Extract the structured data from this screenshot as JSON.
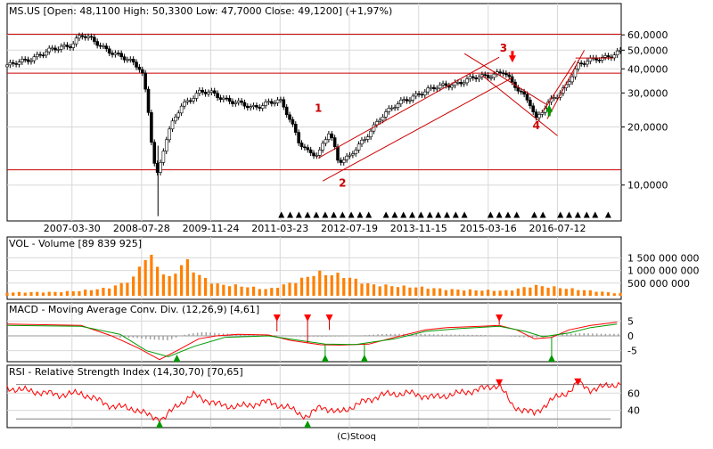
{
  "chart_data": [
    {
      "type": "candlestick",
      "title": "MS.US [Open: 48,1100 High: 50,3300 Low: 47,7000 Close: 49,1200] (+1,97%)",
      "scale": "log",
      "ylim": [
        6.8,
        72
      ],
      "yticks": [
        {
          "value": 10,
          "label": "10,0000"
        },
        {
          "value": 20,
          "label": "20,0000"
        },
        {
          "value": 30,
          "label": "30,0000"
        },
        {
          "value": 40,
          "label": "40,0000"
        },
        {
          "value": 50,
          "label": "50,0000"
        },
        {
          "value": 60,
          "label": "60,0000"
        }
      ],
      "xlim": [
        "2006-01-01",
        "2017-09-30"
      ],
      "xticks": [
        "2007-03-30",
        "2008-07-28",
        "2009-11-24",
        "2011-03-23",
        "2012-07-19",
        "2013-11-15",
        "2015-03-16",
        "2016-07-12"
      ],
      "grid": true,
      "price_path": [
        [
          "2006-01-01",
          41
        ],
        [
          "2006-07-01",
          46
        ],
        [
          "2007-03-30",
          54
        ],
        [
          "2007-06-01",
          60
        ],
        [
          "2007-11-01",
          52
        ],
        [
          "2008-04-01",
          45
        ],
        [
          "2008-07-28",
          40
        ],
        [
          "2008-10-15",
          14
        ],
        [
          "2008-11-20",
          11
        ],
        [
          "2009-01-15",
          17
        ],
        [
          "2009-05-01",
          26
        ],
        [
          "2009-09-01",
          30
        ],
        [
          "2009-11-24",
          30
        ],
        [
          "2010-05-01",
          27
        ],
        [
          "2010-09-01",
          25
        ],
        [
          "2011-01-01",
          27
        ],
        [
          "2011-03-23",
          27
        ],
        [
          "2011-08-01",
          17
        ],
        [
          "2011-10-01",
          15
        ],
        [
          "2011-12-15",
          14
        ],
        [
          "2012-03-01",
          19
        ],
        [
          "2012-05-01",
          13.5
        ],
        [
          "2012-07-19",
          14
        ],
        [
          "2012-11-01",
          17
        ],
        [
          "2013-03-01",
          23
        ],
        [
          "2013-11-15",
          30
        ],
        [
          "2014-06-01",
          33
        ],
        [
          "2015-03-16",
          37
        ],
        [
          "2015-07-01",
          39
        ],
        [
          "2015-09-01",
          33
        ],
        [
          "2016-01-01",
          27
        ],
        [
          "2016-02-15",
          22
        ],
        [
          "2016-05-01",
          26
        ],
        [
          "2016-07-12",
          29
        ],
        [
          "2016-09-01",
          32
        ],
        [
          "2016-12-01",
          42
        ],
        [
          "2017-03-01",
          44
        ],
        [
          "2017-06-01",
          46
        ],
        [
          "2017-09-20",
          49.12
        ]
      ],
      "horizontal_lines": [
        60.5,
        38,
        12
      ],
      "trend_lines": [
        {
          "from": [
            "2011-12-15",
            13.8
          ],
          "to": [
            "2015-06-01",
            46
          ]
        },
        {
          "from": [
            "2012-01-15",
            10.5
          ],
          "to": [
            "2015-09-01",
            36
          ]
        },
        {
          "from": [
            "2014-10-01",
            48
          ],
          "to": [
            "2016-05-01",
            26
          ]
        },
        {
          "from": [
            "2015-02-01",
            37
          ],
          "to": [
            "2016-07-12",
            18
          ]
        },
        {
          "from": [
            "2016-05-01",
            22
          ],
          "to": [
            "2017-01-15",
            50
          ]
        },
        {
          "from": [
            "2016-04-01",
            24
          ],
          "to": [
            "2016-11-15",
            44
          ]
        },
        {
          "from": [
            "2016-11-15",
            45.5
          ],
          "to": [
            "2017-08-01",
            45.5
          ]
        }
      ],
      "annotations": [
        {
          "text": "1",
          "x": "2011-12-15",
          "y": 24
        },
        {
          "text": "2",
          "x": "2012-06-01",
          "y": 9.8
        },
        {
          "text": "3",
          "x": "2015-07-01",
          "y": 49
        },
        {
          "text": "4",
          "x": "2016-02-15",
          "y": 19.5
        }
      ],
      "arrows": [
        {
          "direction": "down",
          "x": "2015-09-01",
          "y": 45,
          "color": "#ff0000"
        },
        {
          "direction": "up",
          "x": "2016-05-15",
          "y": 25,
          "color": "#009900"
        }
      ],
      "signal_markers": [
        "2011-04-01",
        "2011-06-01",
        "2011-08-01",
        "2011-10-01",
        "2011-12-01",
        "2012-02-01",
        "2012-04-01",
        "2012-06-01",
        "2012-08-01",
        "2012-10-01",
        "2012-12-01",
        "2013-04-01",
        "2013-06-01",
        "2013-08-01",
        "2013-10-01",
        "2013-12-01",
        "2014-02-01",
        "2014-04-01",
        "2014-06-01",
        "2014-08-01",
        "2014-10-01",
        "2015-04-01",
        "2015-06-01",
        "2015-08-01",
        "2015-10-01",
        "2016-02-01",
        "2016-04-01",
        "2016-08-01",
        "2016-10-01",
        "2016-12-01",
        "2017-02-01",
        "2017-04-01",
        "2017-07-01"
      ]
    },
    {
      "type": "bar",
      "title": "VOL - Volume [89 839 925]",
      "ylim": [
        0,
        1900000000
      ],
      "yticks": [
        {
          "value": 500000000,
          "label": "500 000 000"
        },
        {
          "value": 1000000000,
          "label": "1 000 000 000"
        },
        {
          "value": 1500000000,
          "label": "1 500 000 000"
        }
      ],
      "bar_color": "#ff8000",
      "volume_path": [
        [
          "2006-01-01",
          130000000
        ],
        [
          "2007-01-01",
          150000000
        ],
        [
          "2007-06-01",
          200000000
        ],
        [
          "2007-12-01",
          300000000
        ],
        [
          "2008-03-01",
          450000000
        ],
        [
          "2008-06-01",
          700000000
        ],
        [
          "2008-09-01",
          1650000000
        ],
        [
          "2008-11-01",
          1300000000
        ],
        [
          "2009-02-01",
          650000000
        ],
        [
          "2009-06-01",
          1400000000
        ],
        [
          "2009-09-01",
          800000000
        ],
        [
          "2010-01-01",
          450000000
        ],
        [
          "2010-06-01",
          400000000
        ],
        [
          "2011-01-01",
          250000000
        ],
        [
          "2011-08-01",
          600000000
        ],
        [
          "2011-12-01",
          900000000
        ],
        [
          "2012-06-01",
          800000000
        ],
        [
          "2012-12-01",
          450000000
        ],
        [
          "2013-06-01",
          380000000
        ],
        [
          "2014-01-01",
          320000000
        ],
        [
          "2014-06-01",
          250000000
        ],
        [
          "2015-01-01",
          220000000
        ],
        [
          "2015-08-01",
          200000000
        ],
        [
          "2016-02-01",
          400000000
        ],
        [
          "2016-07-01",
          330000000
        ],
        [
          "2017-01-01",
          230000000
        ],
        [
          "2017-09-01",
          100000000
        ]
      ]
    },
    {
      "type": "line",
      "title": "MACD - Moving Average Conv. Div. (12,26,9) [4,61]",
      "ylim": [
        -7.5,
        7.5
      ],
      "yticks": [
        {
          "value": 5,
          "label": "5"
        },
        {
          "value": 0,
          "label": "0"
        },
        {
          "value": -5,
          "label": "-5"
        }
      ],
      "series": [
        {
          "color": "#ff0000",
          "points": [
            [
              "2006-01-01",
              4
            ],
            [
              "2007-06-01",
              3.5
            ],
            [
              "2008-01-01",
              0
            ],
            [
              "2008-07-01",
              -4
            ],
            [
              "2008-12-01",
              -8
            ],
            [
              "2009-04-01",
              -5
            ],
            [
              "2009-09-01",
              -1
            ],
            [
              "2010-01-01",
              0
            ],
            [
              "2010-06-01",
              0.5
            ],
            [
              "2011-01-01",
              0.3
            ],
            [
              "2011-06-01",
              -1.5
            ],
            [
              "2012-01-01",
              -3
            ],
            [
              "2012-06-01",
              -3.1
            ],
            [
              "2012-12-01",
              -2.8
            ],
            [
              "2013-06-01",
              -0.5
            ],
            [
              "2014-01-01",
              2
            ],
            [
              "2014-06-01",
              2.8
            ],
            [
              "2015-03-01",
              3.3
            ],
            [
              "2015-06-01",
              3.5
            ],
            [
              "2015-10-01",
              2
            ],
            [
              "2016-02-01",
              -1
            ],
            [
              "2016-06-01",
              -0.5
            ],
            [
              "2016-10-01",
              2
            ],
            [
              "2017-03-01",
              3.5
            ],
            [
              "2017-09-01",
              4.61
            ]
          ]
        },
        {
          "color": "#009900",
          "points": [
            [
              "2006-01-01",
              3.5
            ],
            [
              "2007-06-01",
              3.2
            ],
            [
              "2008-03-01",
              0.5
            ],
            [
              "2008-09-01",
              -5
            ],
            [
              "2009-02-01",
              -7
            ],
            [
              "2009-08-01",
              -3.5
            ],
            [
              "2010-03-01",
              -0.5
            ],
            [
              "2011-01-01",
              0
            ],
            [
              "2011-08-01",
              -1.5
            ],
            [
              "2012-02-01",
              -2.8
            ],
            [
              "2012-09-01",
              -2.9
            ],
            [
              "2013-06-01",
              -1
            ],
            [
              "2014-01-01",
              1.5
            ],
            [
              "2014-09-01",
              2.5
            ],
            [
              "2015-06-01",
              3.2
            ],
            [
              "2015-12-01",
              1.5
            ],
            [
              "2016-04-01",
              -0.3
            ],
            [
              "2016-10-01",
              1
            ],
            [
              "2017-03-01",
              2.8
            ],
            [
              "2017-09-01",
              4
            ]
          ]
        }
      ],
      "histogram": [
        [
          "2008-06-01",
          -0.6
        ],
        [
          "2008-10-01",
          -1.2
        ],
        [
          "2009-02-01",
          -1.5
        ],
        [
          "2009-06-01",
          0.5
        ],
        [
          "2009-10-01",
          1.3
        ],
        [
          "2010-02-01",
          0.8
        ],
        [
          "2010-06-01",
          0.6
        ],
        [
          "2011-01-01",
          0.4
        ],
        [
          "2011-06-01",
          -0.2
        ],
        [
          "2012-01-01",
          -0.3
        ],
        [
          "2012-06-01",
          -0.2
        ],
        [
          "2013-03-01",
          0.6
        ],
        [
          "2013-09-01",
          0.7
        ],
        [
          "2014-03-01",
          0.5
        ],
        [
          "2014-09-01",
          0.4
        ],
        [
          "2015-03-01",
          0.3
        ],
        [
          "2015-08-01",
          -0.2
        ],
        [
          "2016-01-01",
          -0.6
        ],
        [
          "2016-05-01",
          -0.2
        ],
        [
          "2016-09-01",
          0.6
        ],
        [
          "2017-01-01",
          0.9
        ],
        [
          "2017-06-01",
          0.7
        ]
      ],
      "sell_signals": [
        {
          "x": "2011-03-01",
          "y": 1.5
        },
        {
          "x": "2011-10-01",
          "y": -2.5
        },
        {
          "x": "2012-03-01",
          "y": 2
        },
        {
          "x": "2015-06-01",
          "y": 3.8
        }
      ],
      "buy_signals": [
        {
          "x": "2009-04-01",
          "y": -8
        },
        {
          "x": "2012-02-01",
          "y": -3
        },
        {
          "x": "2012-11-01",
          "y": -2.8
        },
        {
          "x": "2016-06-01",
          "y": -0.3
        }
      ]
    },
    {
      "type": "line",
      "title": "RSI - Relative Strength Index (14,30,70) [70,65]",
      "ylim": [
        24,
        80
      ],
      "yticks": [
        {
          "value": 40,
          "label": "40"
        },
        {
          "value": 60,
          "label": "60"
        }
      ],
      "guides": [
        70,
        30
      ],
      "series": [
        {
          "color": "#ff0000",
          "points": [
            [
              "2006-01-01",
              66
            ],
            [
              "2006-07-01",
              62
            ],
            [
              "2007-01-01",
              58
            ],
            [
              "2007-06-01",
              60
            ],
            [
              "2008-01-01",
              45
            ],
            [
              "2008-06-01",
              42
            ],
            [
              "2008-10-01",
              33
            ],
            [
              "2009-01-01",
              30
            ],
            [
              "2009-04-01",
              46
            ],
            [
              "2009-08-01",
              58
            ],
            [
              "2010-01-01",
              47
            ],
            [
              "2010-06-01",
              44
            ],
            [
              "2011-01-01",
              50
            ],
            [
              "2011-06-01",
              42
            ],
            [
              "2011-10-01",
              32
            ],
            [
              "2012-01-01",
              45
            ],
            [
              "2012-05-01",
              37
            ],
            [
              "2012-10-01",
              48
            ],
            [
              "2013-03-01",
              58
            ],
            [
              "2013-09-01",
              60
            ],
            [
              "2014-03-01",
              55
            ],
            [
              "2014-09-01",
              60
            ],
            [
              "2015-03-01",
              66
            ],
            [
              "2015-06-01",
              70
            ],
            [
              "2015-09-01",
              45
            ],
            [
              "2016-02-01",
              36
            ],
            [
              "2016-06-01",
              52
            ],
            [
              "2016-10-01",
              62
            ],
            [
              "2016-12-01",
              72
            ],
            [
              "2017-03-01",
              64
            ],
            [
              "2017-09-01",
              70.65
            ]
          ]
        }
      ],
      "sell_signals": [
        {
          "x": "2015-06-01",
          "y": 72
        },
        {
          "x": "2016-12-01",
          "y": 73
        }
      ],
      "buy_signals": [
        {
          "x": "2008-12-01",
          "y": 28
        },
        {
          "x": "2011-10-01",
          "y": 30
        }
      ]
    }
  ],
  "footer": "(C)Stooq"
}
